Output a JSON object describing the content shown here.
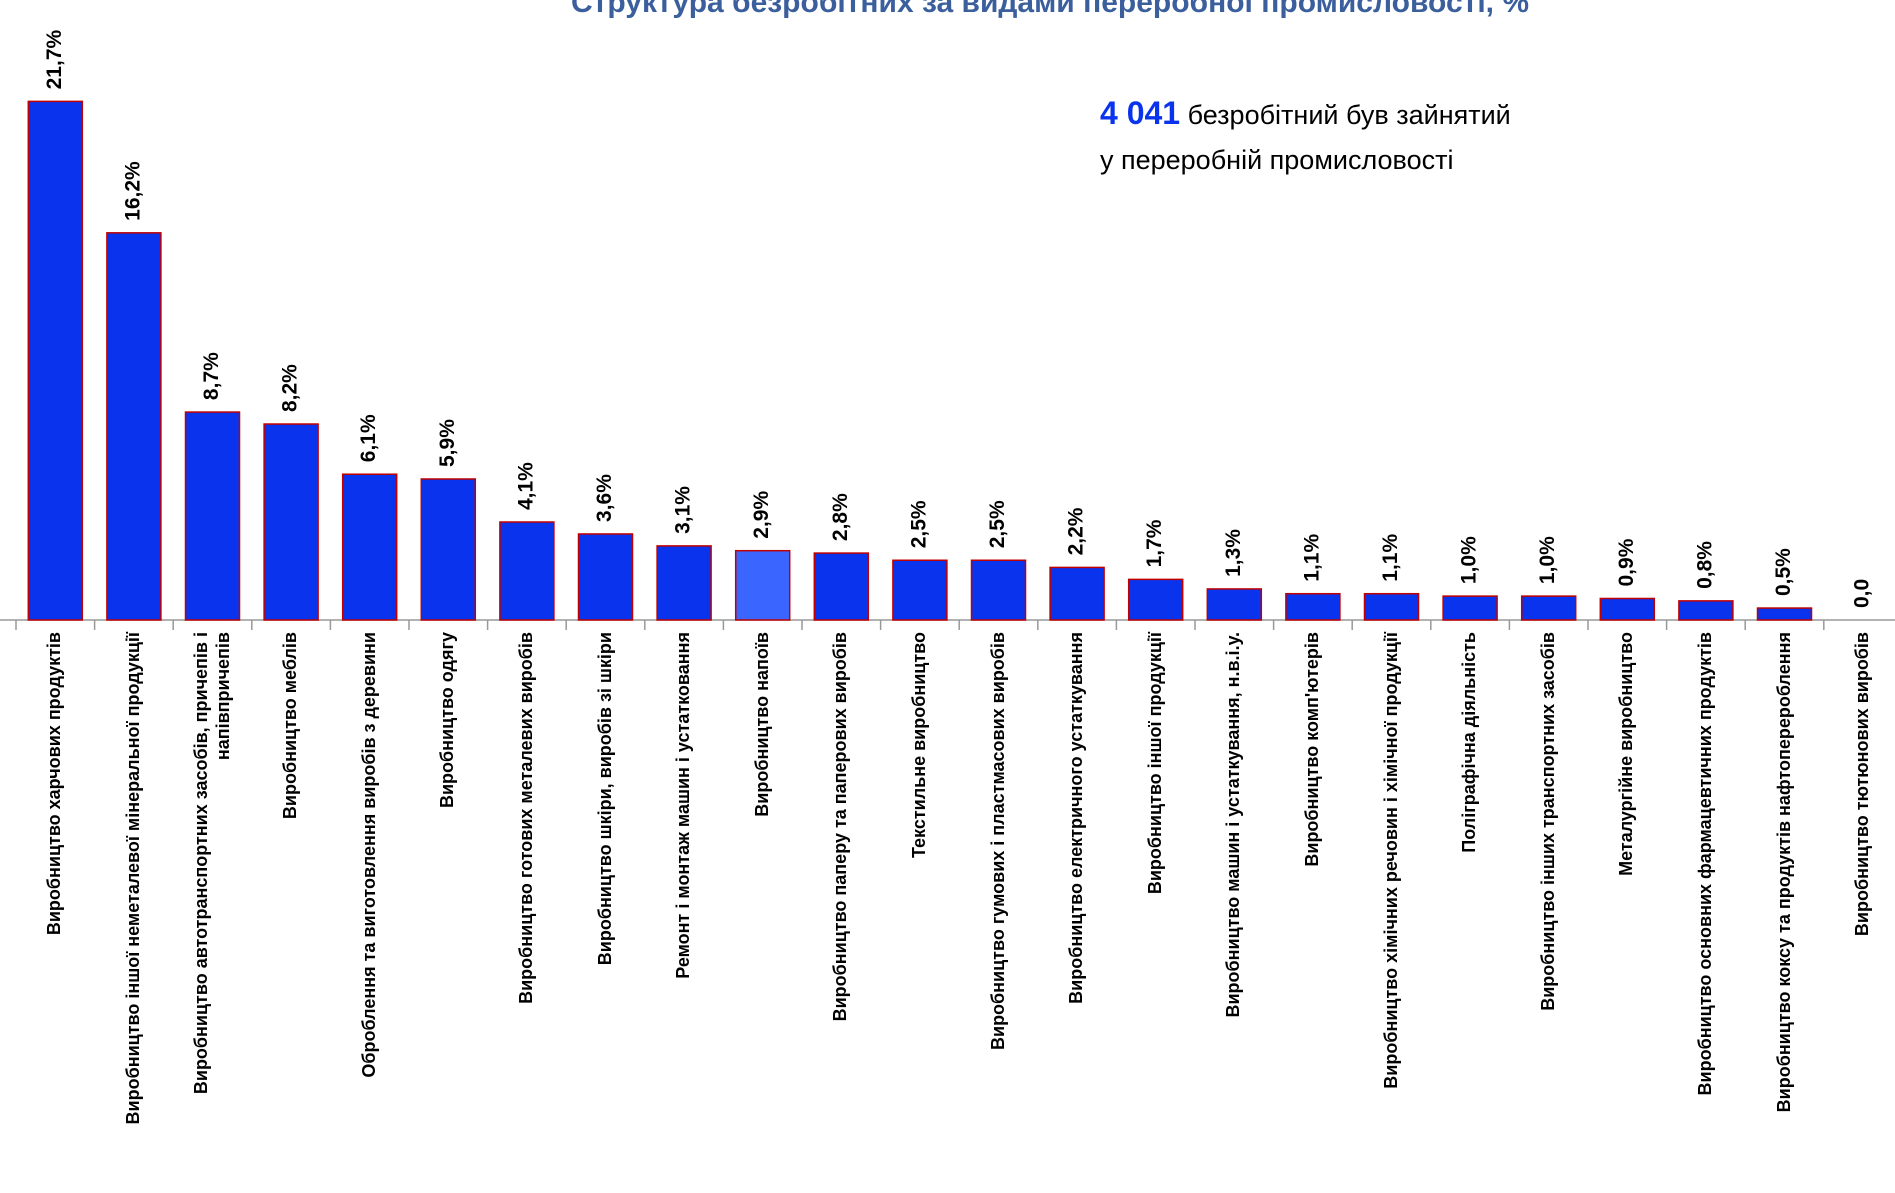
{
  "chart_data": {
    "type": "bar",
    "title": "Структура безробітних за видами переробної промисловості, %",
    "annotation": {
      "number": "4 041",
      "line1": "безробітний був зайнятий",
      "line2": "у переробній промисловості"
    },
    "categories": [
      "Виробництво харчових продуктів",
      "Виробництво іншої неметалевої мінеральної продукції",
      "Виробництво автотранспортних засобів, причепів і напівпричепів",
      "Виробництво меблів",
      "Оброблення та виготовлення виробів з деревини",
      "Виробництво одягу",
      "Виробництво готових металевих виробів",
      "Виробництво шкіри, виробів зі шкіри",
      "Ремонт і монтаж машин і устатковання",
      "Виробництво напоїв",
      "Виробництво паперу та паперових виробів",
      "Текстильне виробництво",
      "Виробництво гумових і пластмасових виробів",
      "Виробництво електричного устаткування",
      "Виробництво іншої продукції",
      "Виробництво машин і устаткування, н.в.і.у.",
      "Виробництво комп'ютерів",
      "Виробництво хімічних речовин і хімічної продукції",
      "Поліграфічна діяльність",
      "Виробництво інших транспортних засобів",
      "Металургійне виробництво",
      "Виробництво основних фармацевтичних продуктів",
      "Виробництво коксу та продуктів нафтоперероблення",
      "Виробництво тютюнових виробів"
    ],
    "values": [
      21.7,
      16.2,
      8.7,
      8.2,
      6.1,
      5.9,
      4.1,
      3.6,
      3.1,
      2.9,
      2.8,
      2.5,
      2.5,
      2.2,
      1.7,
      1.3,
      1.1,
      1.1,
      1.0,
      1.0,
      0.9,
      0.8,
      0.5,
      0.0
    ],
    "value_labels": [
      "21,7%",
      "16,2%",
      "8,7%",
      "8,2%",
      "6,1%",
      "5,9%",
      "4,1%",
      "3,6%",
      "3,1%",
      "2,9%",
      "2,8%",
      "2,5%",
      "2,5%",
      "2,2%",
      "1,7%",
      "1,3%",
      "1,1%",
      "1,1%",
      "1,0%",
      "1,0%",
      "0,9%",
      "0,8%",
      "0,5%",
      "0,0"
    ],
    "colors": [
      "#0a33ee",
      "#0a33ee",
      "#0a33ee",
      "#0a33ee",
      "#0a33ee",
      "#0a33ee",
      "#0a33ee",
      "#0a33ee",
      "#0a33ee",
      "#3a66ff",
      "#0a33ee",
      "#0a33ee",
      "#0a33ee",
      "#0a33ee",
      "#0a33ee",
      "#0a33ee",
      "#0a33ee",
      "#0a33ee",
      "#0a33ee",
      "#0a33ee",
      "#0a33ee",
      "#0a33ee",
      "#0a33ee",
      "#0a33ee"
    ]
  }
}
